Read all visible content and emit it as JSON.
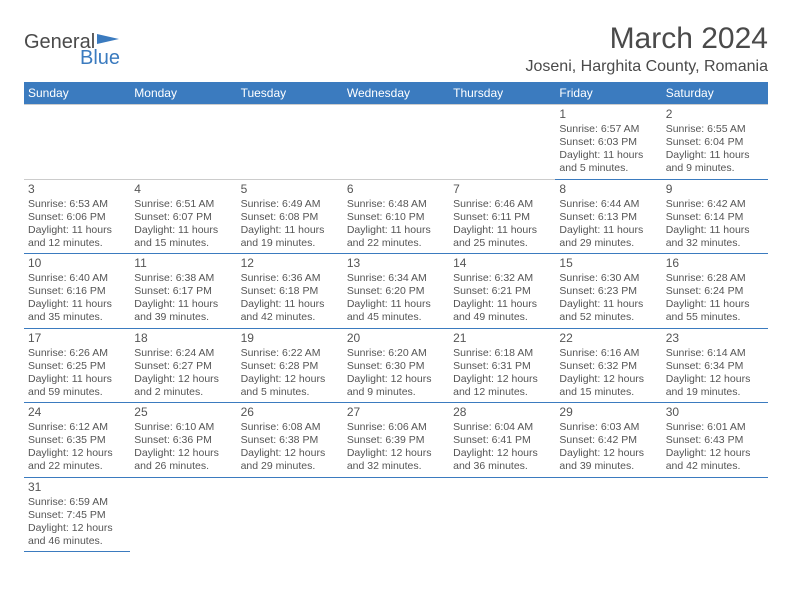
{
  "logo": {
    "line1": "General",
    "line2": "Blue"
  },
  "title": "March 2024",
  "location": "Joseni, Harghita County, Romania",
  "colors": {
    "header_bg": "#3b7bbf",
    "header_text": "#ffffff",
    "cell_border": "#3b7bbf",
    "text": "#555555",
    "page_bg": "#ffffff"
  },
  "fonts": {
    "title_size": 30,
    "location_size": 16,
    "dayhdr_size": 12,
    "cell_size": 10.5
  },
  "day_headers": [
    "Sunday",
    "Monday",
    "Tuesday",
    "Wednesday",
    "Thursday",
    "Friday",
    "Saturday"
  ],
  "weeks": [
    [
      null,
      null,
      null,
      null,
      null,
      {
        "n": "1",
        "sr": "Sunrise: 6:57 AM",
        "ss": "Sunset: 6:03 PM",
        "d1": "Daylight: 11 hours",
        "d2": "and 5 minutes."
      },
      {
        "n": "2",
        "sr": "Sunrise: 6:55 AM",
        "ss": "Sunset: 6:04 PM",
        "d1": "Daylight: 11 hours",
        "d2": "and 9 minutes."
      }
    ],
    [
      {
        "n": "3",
        "sr": "Sunrise: 6:53 AM",
        "ss": "Sunset: 6:06 PM",
        "d1": "Daylight: 11 hours",
        "d2": "and 12 minutes."
      },
      {
        "n": "4",
        "sr": "Sunrise: 6:51 AM",
        "ss": "Sunset: 6:07 PM",
        "d1": "Daylight: 11 hours",
        "d2": "and 15 minutes."
      },
      {
        "n": "5",
        "sr": "Sunrise: 6:49 AM",
        "ss": "Sunset: 6:08 PM",
        "d1": "Daylight: 11 hours",
        "d2": "and 19 minutes."
      },
      {
        "n": "6",
        "sr": "Sunrise: 6:48 AM",
        "ss": "Sunset: 6:10 PM",
        "d1": "Daylight: 11 hours",
        "d2": "and 22 minutes."
      },
      {
        "n": "7",
        "sr": "Sunrise: 6:46 AM",
        "ss": "Sunset: 6:11 PM",
        "d1": "Daylight: 11 hours",
        "d2": "and 25 minutes."
      },
      {
        "n": "8",
        "sr": "Sunrise: 6:44 AM",
        "ss": "Sunset: 6:13 PM",
        "d1": "Daylight: 11 hours",
        "d2": "and 29 minutes."
      },
      {
        "n": "9",
        "sr": "Sunrise: 6:42 AM",
        "ss": "Sunset: 6:14 PM",
        "d1": "Daylight: 11 hours",
        "d2": "and 32 minutes."
      }
    ],
    [
      {
        "n": "10",
        "sr": "Sunrise: 6:40 AM",
        "ss": "Sunset: 6:16 PM",
        "d1": "Daylight: 11 hours",
        "d2": "and 35 minutes."
      },
      {
        "n": "11",
        "sr": "Sunrise: 6:38 AM",
        "ss": "Sunset: 6:17 PM",
        "d1": "Daylight: 11 hours",
        "d2": "and 39 minutes."
      },
      {
        "n": "12",
        "sr": "Sunrise: 6:36 AM",
        "ss": "Sunset: 6:18 PM",
        "d1": "Daylight: 11 hours",
        "d2": "and 42 minutes."
      },
      {
        "n": "13",
        "sr": "Sunrise: 6:34 AM",
        "ss": "Sunset: 6:20 PM",
        "d1": "Daylight: 11 hours",
        "d2": "and 45 minutes."
      },
      {
        "n": "14",
        "sr": "Sunrise: 6:32 AM",
        "ss": "Sunset: 6:21 PM",
        "d1": "Daylight: 11 hours",
        "d2": "and 49 minutes."
      },
      {
        "n": "15",
        "sr": "Sunrise: 6:30 AM",
        "ss": "Sunset: 6:23 PM",
        "d1": "Daylight: 11 hours",
        "d2": "and 52 minutes."
      },
      {
        "n": "16",
        "sr": "Sunrise: 6:28 AM",
        "ss": "Sunset: 6:24 PM",
        "d1": "Daylight: 11 hours",
        "d2": "and 55 minutes."
      }
    ],
    [
      {
        "n": "17",
        "sr": "Sunrise: 6:26 AM",
        "ss": "Sunset: 6:25 PM",
        "d1": "Daylight: 11 hours",
        "d2": "and 59 minutes."
      },
      {
        "n": "18",
        "sr": "Sunrise: 6:24 AM",
        "ss": "Sunset: 6:27 PM",
        "d1": "Daylight: 12 hours",
        "d2": "and 2 minutes."
      },
      {
        "n": "19",
        "sr": "Sunrise: 6:22 AM",
        "ss": "Sunset: 6:28 PM",
        "d1": "Daylight: 12 hours",
        "d2": "and 5 minutes."
      },
      {
        "n": "20",
        "sr": "Sunrise: 6:20 AM",
        "ss": "Sunset: 6:30 PM",
        "d1": "Daylight: 12 hours",
        "d2": "and 9 minutes."
      },
      {
        "n": "21",
        "sr": "Sunrise: 6:18 AM",
        "ss": "Sunset: 6:31 PM",
        "d1": "Daylight: 12 hours",
        "d2": "and 12 minutes."
      },
      {
        "n": "22",
        "sr": "Sunrise: 6:16 AM",
        "ss": "Sunset: 6:32 PM",
        "d1": "Daylight: 12 hours",
        "d2": "and 15 minutes."
      },
      {
        "n": "23",
        "sr": "Sunrise: 6:14 AM",
        "ss": "Sunset: 6:34 PM",
        "d1": "Daylight: 12 hours",
        "d2": "and 19 minutes."
      }
    ],
    [
      {
        "n": "24",
        "sr": "Sunrise: 6:12 AM",
        "ss": "Sunset: 6:35 PM",
        "d1": "Daylight: 12 hours",
        "d2": "and 22 minutes."
      },
      {
        "n": "25",
        "sr": "Sunrise: 6:10 AM",
        "ss": "Sunset: 6:36 PM",
        "d1": "Daylight: 12 hours",
        "d2": "and 26 minutes."
      },
      {
        "n": "26",
        "sr": "Sunrise: 6:08 AM",
        "ss": "Sunset: 6:38 PM",
        "d1": "Daylight: 12 hours",
        "d2": "and 29 minutes."
      },
      {
        "n": "27",
        "sr": "Sunrise: 6:06 AM",
        "ss": "Sunset: 6:39 PM",
        "d1": "Daylight: 12 hours",
        "d2": "and 32 minutes."
      },
      {
        "n": "28",
        "sr": "Sunrise: 6:04 AM",
        "ss": "Sunset: 6:41 PM",
        "d1": "Daylight: 12 hours",
        "d2": "and 36 minutes."
      },
      {
        "n": "29",
        "sr": "Sunrise: 6:03 AM",
        "ss": "Sunset: 6:42 PM",
        "d1": "Daylight: 12 hours",
        "d2": "and 39 minutes."
      },
      {
        "n": "30",
        "sr": "Sunrise: 6:01 AM",
        "ss": "Sunset: 6:43 PM",
        "d1": "Daylight: 12 hours",
        "d2": "and 42 minutes."
      }
    ],
    [
      {
        "n": "31",
        "sr": "Sunrise: 6:59 AM",
        "ss": "Sunset: 7:45 PM",
        "d1": "Daylight: 12 hours",
        "d2": "and 46 minutes."
      },
      null,
      null,
      null,
      null,
      null,
      null
    ]
  ]
}
